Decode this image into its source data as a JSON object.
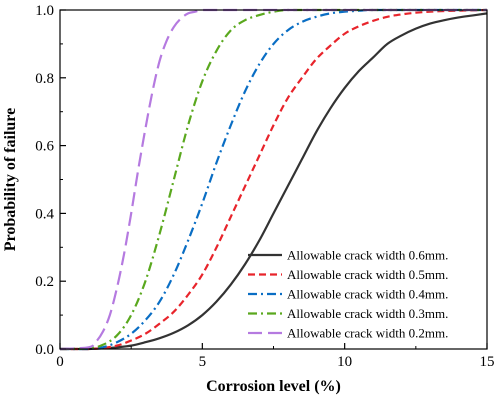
{
  "chart_data": {
    "type": "line",
    "xlabel": "Corrosion level (%)",
    "ylabel": "Probability of failure",
    "xlim": [
      0,
      15
    ],
    "ylim": [
      0,
      1.0
    ],
    "xticks": [
      0,
      5,
      10,
      15
    ],
    "yticks": [
      0.0,
      0.2,
      0.4,
      0.6,
      0.8,
      1.0
    ],
    "xtick_labels": [
      "0",
      "5",
      "10",
      "15"
    ],
    "ytick_labels": [
      "0.0",
      "0.2",
      "0.4",
      "0.6",
      "0.8",
      "1.0"
    ],
    "grid": false,
    "legend_position": "lower-right",
    "series": [
      {
        "name": "Allowable crack width 0.6mm.",
        "color": "#333333",
        "dash": "solid",
        "x": [
          0,
          1,
          1.5,
          2,
          2.5,
          3,
          3.5,
          4,
          4.5,
          5,
          5.5,
          6,
          6.5,
          7,
          7.5,
          8,
          8.5,
          9,
          9.5,
          10,
          10.5,
          11,
          11.5,
          12,
          12.5,
          13,
          13.5,
          14,
          14.5,
          15
        ],
        "values": [
          0,
          0,
          0.002,
          0.005,
          0.01,
          0.02,
          0.032,
          0.048,
          0.07,
          0.1,
          0.14,
          0.19,
          0.25,
          0.32,
          0.4,
          0.48,
          0.56,
          0.64,
          0.71,
          0.77,
          0.82,
          0.86,
          0.9,
          0.925,
          0.945,
          0.96,
          0.97,
          0.978,
          0.984,
          0.99
        ]
      },
      {
        "name": "Allowable crack width 0.5mm.",
        "color": "#e8242b",
        "dash": "dashed",
        "x": [
          0,
          1,
          1.5,
          2,
          2.5,
          3,
          3.5,
          4,
          4.5,
          5,
          5.5,
          6,
          6.5,
          7,
          7.5,
          8,
          8.5,
          9,
          9.5,
          10,
          10.5,
          11,
          11.5,
          12,
          12.5,
          13,
          13.5,
          14,
          14.5,
          15
        ],
        "values": [
          0,
          0,
          0.003,
          0.01,
          0.025,
          0.045,
          0.075,
          0.11,
          0.16,
          0.22,
          0.3,
          0.39,
          0.48,
          0.57,
          0.66,
          0.74,
          0.8,
          0.855,
          0.895,
          0.93,
          0.952,
          0.968,
          0.98,
          0.987,
          0.992,
          0.995,
          0.997,
          0.998,
          0.999,
          1.0
        ]
      },
      {
        "name": "Allowable crack width 0.4mm.",
        "color": "#0a6ec4",
        "dash": "dashdot",
        "x": [
          0,
          1,
          1.5,
          2,
          2.5,
          3,
          3.5,
          4,
          4.5,
          5,
          5.5,
          6,
          6.5,
          7,
          7.5,
          8,
          8.5,
          9,
          9.5,
          10,
          10.5,
          11,
          12,
          13,
          14,
          15
        ],
        "values": [
          0,
          0,
          0.005,
          0.02,
          0.045,
          0.085,
          0.14,
          0.22,
          0.32,
          0.43,
          0.55,
          0.66,
          0.76,
          0.84,
          0.9,
          0.94,
          0.965,
          0.98,
          0.99,
          0.995,
          0.998,
          1.0,
          1.0,
          1.0,
          1.0,
          1.0
        ]
      },
      {
        "name": "Allowable crack width 0.3mm.",
        "color": "#5aa81e",
        "dash": "dashdot",
        "x": [
          0,
          1,
          1.5,
          2,
          2.5,
          3,
          3.5,
          4,
          4.5,
          5,
          5.5,
          6,
          6.5,
          7,
          7.5,
          8,
          9,
          10,
          12,
          15
        ],
        "values": [
          0,
          0.002,
          0.012,
          0.04,
          0.1,
          0.2,
          0.34,
          0.5,
          0.66,
          0.79,
          0.88,
          0.94,
          0.97,
          0.985,
          0.995,
          1.0,
          1.0,
          1.0,
          1.0,
          1.0
        ]
      },
      {
        "name": "Allowable crack width 0.2mm.",
        "color": "#b57ae0",
        "dash": "longdash",
        "x": [
          0,
          1,
          1.25,
          1.5,
          1.75,
          2,
          2.25,
          2.5,
          2.75,
          3,
          3.25,
          3.5,
          3.75,
          4,
          4.25,
          4.5,
          4.75,
          5,
          5.5,
          6,
          8,
          10,
          15
        ],
        "values": [
          0,
          0.005,
          0.02,
          0.05,
          0.1,
          0.18,
          0.28,
          0.4,
          0.53,
          0.65,
          0.76,
          0.85,
          0.91,
          0.95,
          0.975,
          0.99,
          0.995,
          1.0,
          1.0,
          1.0,
          1.0,
          1.0,
          1.0
        ]
      }
    ]
  }
}
